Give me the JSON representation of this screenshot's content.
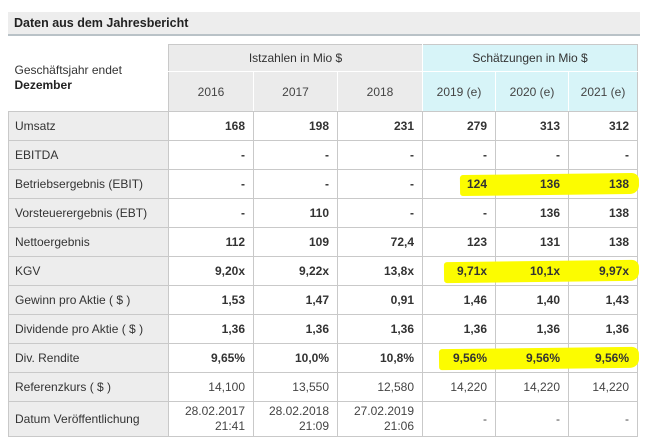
{
  "title": "Daten aus dem Jahresbericht",
  "table": {
    "corner": {
      "line1": "Geschäftsjahr endet",
      "line2": "Dezember"
    },
    "groups": [
      {
        "label": "Istzahlen in Mio $",
        "years": [
          "2016",
          "2017",
          "2018"
        ]
      },
      {
        "label": "Schätzungen in Mio $",
        "years": [
          "2019 (e)",
          "2020 (e)",
          "2021 (e)"
        ]
      }
    ],
    "rows": [
      {
        "label": "Umsatz",
        "values": [
          "168",
          "198",
          "231",
          "279",
          "313",
          "312"
        ],
        "highlighted": false
      },
      {
        "label": "EBITDA",
        "values": [
          "-",
          "-",
          "-",
          "-",
          "-",
          "-"
        ],
        "highlighted": false
      },
      {
        "label": "Betriebsergebnis (EBIT)",
        "values": [
          "-",
          "-",
          "-",
          "124",
          "136",
          "138"
        ],
        "highlighted": true
      },
      {
        "label": "Vorsteuerergebnis (EBT)",
        "values": [
          "-",
          "110",
          "-",
          "-",
          "136",
          "138"
        ],
        "highlighted": false
      },
      {
        "label": "Nettoergebnis",
        "values": [
          "112",
          "109",
          "72,4",
          "123",
          "131",
          "138"
        ],
        "highlighted": false
      },
      {
        "label": "KGV",
        "values": [
          "9,20x",
          "9,22x",
          "13,8x",
          "9,71x",
          "10,1x",
          "9,97x"
        ],
        "highlighted": true
      },
      {
        "label": "Gewinn pro Aktie ( $ )",
        "values": [
          "1,53",
          "1,47",
          "0,91",
          "1,46",
          "1,40",
          "1,43"
        ],
        "highlighted": false
      },
      {
        "label": "Dividende pro Aktie ( $ )",
        "values": [
          "1,36",
          "1,36",
          "1,36",
          "1,36",
          "1,36",
          "1,36"
        ],
        "highlighted": false
      },
      {
        "label": "Div. Rendite",
        "values": [
          "9,65%",
          "10,0%",
          "10,8%",
          "9,56%",
          "9,56%",
          "9,56%"
        ],
        "highlighted": true
      },
      {
        "label": "Referenzkurs ( $ )",
        "values": [
          "14,100",
          "13,550",
          "12,580",
          "14,220",
          "14,220",
          "14,220"
        ],
        "highlighted": false
      },
      {
        "label": "Datum Veröffentlichung",
        "values": [
          "28.02.2017\n21:41",
          "28.02.2018\n21:09",
          "27.02.2019\n21:06",
          "-",
          "-",
          "-"
        ],
        "highlighted": false
      }
    ],
    "colors": {
      "estimates_header_bg": "#d7f4f8",
      "actuals_header_bg": "#ebebeb",
      "label_column_bg": "#ededed",
      "highlight_marker": "#fcfc00",
      "grid_border": "#c9c9c9"
    }
  }
}
